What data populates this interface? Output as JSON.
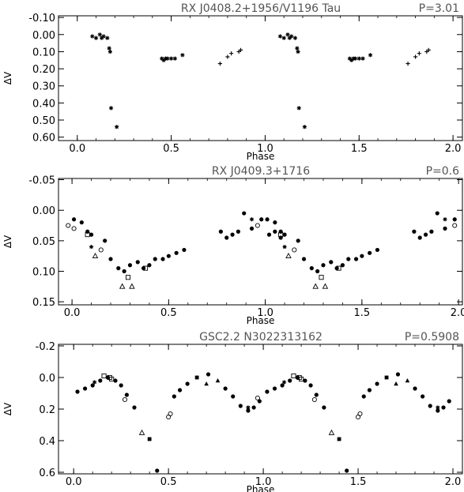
{
  "chart_data": [
    {
      "type": "scatter",
      "title": "RX J0408.2+1956/V1196 Tau",
      "period_label": "P=3.01",
      "xlabel": "Phase",
      "ylabel": "ΔV",
      "xlim": [
        -0.1,
        2.05
      ],
      "ylim": [
        0.62,
        -0.11
      ],
      "xticks": [
        0.0,
        0.5,
        1.0,
        1.5,
        2.0
      ],
      "xtick_labels": [
        "0.0",
        "0.5",
        "1.0",
        "1.5",
        "2.0"
      ],
      "yticks": [
        -0.1,
        0.0,
        0.1,
        0.2,
        0.3,
        0.4,
        0.5,
        0.6
      ],
      "ytick_labels": [
        "-0.10",
        "0.00",
        "0.10",
        "0.20",
        "0.30",
        "0.40",
        "0.50",
        "0.60"
      ],
      "series": [
        {
          "marker": "asterisk",
          "points": [
            [
              0.08,
              0.01
            ],
            [
              0.1,
              0.02
            ],
            [
              0.12,
              0.0
            ],
            [
              0.13,
              0.02
            ],
            [
              0.14,
              0.01
            ],
            [
              0.16,
              0.02
            ],
            [
              0.17,
              0.08
            ],
            [
              0.175,
              0.1
            ],
            [
              0.18,
              0.43
            ],
            [
              0.21,
              0.54
            ],
            [
              0.45,
              0.14
            ],
            [
              0.46,
              0.15
            ],
            [
              0.47,
              0.14
            ],
            [
              0.48,
              0.14
            ],
            [
              0.5,
              0.14
            ],
            [
              0.52,
              0.14
            ],
            [
              0.56,
              0.12
            ],
            [
              1.08,
              0.01
            ],
            [
              1.1,
              0.02
            ],
            [
              1.12,
              0.0
            ],
            [
              1.13,
              0.02
            ],
            [
              1.14,
              0.01
            ],
            [
              1.16,
              0.02
            ],
            [
              1.17,
              0.08
            ],
            [
              1.175,
              0.1
            ],
            [
              1.18,
              0.43
            ],
            [
              1.21,
              0.54
            ],
            [
              1.45,
              0.14
            ],
            [
              1.46,
              0.15
            ],
            [
              1.47,
              0.14
            ],
            [
              1.48,
              0.14
            ],
            [
              1.5,
              0.14
            ],
            [
              1.52,
              0.14
            ],
            [
              1.56,
              0.12
            ]
          ]
        },
        {
          "marker": "plus",
          "points": [
            [
              0.76,
              0.17
            ],
            [
              0.8,
              0.13
            ],
            [
              0.82,
              0.11
            ],
            [
              0.86,
              0.1
            ],
            [
              0.87,
              0.09
            ],
            [
              1.76,
              0.17
            ],
            [
              1.8,
              0.13
            ],
            [
              1.82,
              0.11
            ],
            [
              1.86,
              0.1
            ],
            [
              1.87,
              0.09
            ]
          ]
        }
      ]
    },
    {
      "type": "scatter",
      "title": "RX J0409.3+1716",
      "period_label": "P=0.6",
      "xlabel": "Phase",
      "ylabel": "ΔV",
      "xlim": [
        -0.07,
        2.02
      ],
      "ylim": [
        0.155,
        -0.052
      ],
      "xticks": [
        0.0,
        0.5,
        1.0,
        1.5,
        2.0
      ],
      "xtick_labels": [
        "0.0",
        "0.5",
        "1.0",
        "1.5",
        "2.0"
      ],
      "yticks": [
        -0.05,
        0.0,
        0.05,
        0.1,
        0.15
      ],
      "ytick_labels": [
        "-0.05",
        "0.00",
        "0.05",
        "0.10",
        "0.15"
      ],
      "series": [
        {
          "marker": "filled-circle",
          "points": [
            [
              0.01,
              0.015
            ],
            [
              0.05,
              0.02
            ],
            [
              0.08,
              0.035
            ],
            [
              0.1,
              0.04
            ],
            [
              0.17,
              0.05
            ],
            [
              0.2,
              0.08
            ],
            [
              0.24,
              0.095
            ],
            [
              0.27,
              0.1
            ],
            [
              0.3,
              0.09
            ],
            [
              0.34,
              0.085
            ],
            [
              0.37,
              0.095
            ],
            [
              0.4,
              0.09
            ],
            [
              0.43,
              0.08
            ],
            [
              0.47,
              0.08
            ],
            [
              0.5,
              0.075
            ],
            [
              0.54,
              0.07
            ],
            [
              0.58,
              0.065
            ],
            [
              0.77,
              0.035
            ],
            [
              0.8,
              0.045
            ],
            [
              0.83,
              0.04
            ],
            [
              0.86,
              0.035
            ],
            [
              0.89,
              0.005
            ],
            [
              0.93,
              0.03
            ],
            [
              0.98,
              0.015
            ],
            [
              1.02,
              0.04
            ],
            [
              1.05,
              0.035
            ],
            [
              1.08,
              0.045
            ],
            [
              1.01,
              0.015
            ],
            [
              1.05,
              0.02
            ],
            [
              1.08,
              0.035
            ],
            [
              1.1,
              0.04
            ],
            [
              1.17,
              0.05
            ],
            [
              1.2,
              0.08
            ],
            [
              1.24,
              0.095
            ],
            [
              1.27,
              0.1
            ],
            [
              1.3,
              0.09
            ],
            [
              1.34,
              0.085
            ],
            [
              1.37,
              0.095
            ],
            [
              1.4,
              0.09
            ],
            [
              1.43,
              0.08
            ],
            [
              1.47,
              0.08
            ],
            [
              1.5,
              0.075
            ],
            [
              1.54,
              0.07
            ],
            [
              1.58,
              0.065
            ],
            [
              1.77,
              0.035
            ],
            [
              1.8,
              0.045
            ],
            [
              1.83,
              0.04
            ],
            [
              1.86,
              0.035
            ],
            [
              1.89,
              0.005
            ],
            [
              1.93,
              0.03
            ],
            [
              1.98,
              0.015
            ]
          ]
        },
        {
          "marker": "open-square",
          "points": [
            [
              0.08,
              0.04
            ],
            [
              0.29,
              0.11
            ],
            [
              0.38,
              0.095
            ],
            [
              1.08,
              0.04
            ],
            [
              1.29,
              0.11
            ],
            [
              1.38,
              0.095
            ]
          ]
        },
        {
          "marker": "open-triangle",
          "points": [
            [
              0.12,
              0.075
            ],
            [
              0.26,
              0.125
            ],
            [
              0.31,
              0.125
            ],
            [
              1.12,
              0.075
            ],
            [
              1.26,
              0.125
            ],
            [
              1.31,
              0.125
            ]
          ]
        },
        {
          "marker": "open-circle",
          "points": [
            [
              -0.02,
              0.025
            ],
            [
              0.01,
              0.03
            ],
            [
              0.15,
              0.065
            ],
            [
              0.96,
              0.025
            ],
            [
              1.15,
              0.065
            ],
            [
              1.98,
              0.025
            ]
          ]
        },
        {
          "marker": "asterisk",
          "points": [
            [
              0.1,
              0.06
            ],
            [
              0.93,
              0.015
            ],
            [
              1.1,
              0.06
            ],
            [
              1.93,
              0.015
            ]
          ]
        }
      ]
    },
    {
      "type": "scatter",
      "title": "GSC2.2 N3022313162",
      "period_label": "P=0.5908",
      "xlabel": "Phase",
      "ylabel": "ΔV",
      "xlim": [
        -0.08,
        2.05
      ],
      "ylim": [
        0.61,
        -0.21
      ],
      "xticks": [
        0.0,
        0.5,
        1.0,
        1.5,
        2.0
      ],
      "xtick_labels": [
        "0.0",
        "0.5",
        "1.0",
        "1.5",
        "2.0"
      ],
      "yticks": [
        -0.2,
        0.0,
        0.2,
        0.4,
        0.6
      ],
      "ytick_labels": [
        "-0.2",
        "0.0",
        "0.2",
        "0.4",
        "0.6"
      ],
      "series": [
        {
          "marker": "filled-circle",
          "points": [
            [
              0.02,
              0.09
            ],
            [
              0.06,
              0.07
            ],
            [
              0.1,
              0.05
            ],
            [
              0.14,
              0.02
            ],
            [
              0.18,
              0.0
            ],
            [
              0.22,
              0.02
            ],
            [
              0.25,
              0.05
            ],
            [
              0.28,
              0.11
            ],
            [
              0.32,
              0.19
            ],
            [
              0.44,
              0.59
            ],
            [
              0.53,
              0.12
            ],
            [
              0.56,
              0.08
            ],
            [
              0.6,
              0.04
            ],
            [
              0.71,
              -0.02
            ],
            [
              0.8,
              0.07
            ],
            [
              0.84,
              0.12
            ],
            [
              0.88,
              0.18
            ],
            [
              0.92,
              0.21
            ],
            [
              0.95,
              0.19
            ],
            [
              0.98,
              0.15
            ],
            [
              1.02,
              0.09
            ],
            [
              1.06,
              0.07
            ],
            [
              1.1,
              0.05
            ],
            [
              1.14,
              0.02
            ],
            [
              1.18,
              0.0
            ],
            [
              1.22,
              0.02
            ],
            [
              1.25,
              0.05
            ],
            [
              1.28,
              0.11
            ],
            [
              1.32,
              0.19
            ],
            [
              1.44,
              0.59
            ],
            [
              1.53,
              0.12
            ],
            [
              1.56,
              0.08
            ],
            [
              1.6,
              0.04
            ],
            [
              1.71,
              -0.02
            ],
            [
              1.8,
              0.07
            ],
            [
              1.84,
              0.12
            ],
            [
              1.88,
              0.18
            ],
            [
              1.92,
              0.21
            ],
            [
              1.95,
              0.19
            ],
            [
              1.98,
              0.15
            ]
          ]
        },
        {
          "marker": "filled-square",
          "points": [
            [
              0.4,
              0.39
            ],
            [
              0.65,
              0.0
            ],
            [
              1.4,
              0.39
            ],
            [
              1.65,
              0.0
            ]
          ]
        },
        {
          "marker": "filled-triangle",
          "points": [
            [
              0.7,
              0.04
            ],
            [
              0.76,
              0.02
            ],
            [
              1.7,
              0.04
            ],
            [
              1.76,
              0.02
            ]
          ]
        },
        {
          "marker": "open-circle",
          "points": [
            [
              0.27,
              0.14
            ],
            [
              0.5,
              0.25
            ],
            [
              0.51,
              0.23
            ],
            [
              0.97,
              0.13
            ],
            [
              1.27,
              0.14
            ],
            [
              1.5,
              0.25
            ],
            [
              1.51,
              0.23
            ]
          ]
        },
        {
          "marker": "open-square",
          "points": [
            [
              0.16,
              -0.01
            ],
            [
              0.19,
              0.0
            ],
            [
              0.2,
              0.01
            ],
            [
              1.16,
              -0.01
            ],
            [
              1.19,
              0.0
            ],
            [
              1.2,
              0.01
            ]
          ]
        },
        {
          "marker": "open-triangle",
          "points": [
            [
              0.36,
              0.35
            ],
            [
              1.36,
              0.35
            ]
          ]
        },
        {
          "marker": "asterisk",
          "points": [
            [
              0.11,
              0.03
            ],
            [
              0.92,
              0.19
            ],
            [
              1.11,
              0.03
            ],
            [
              1.92,
              0.19
            ]
          ]
        }
      ]
    }
  ]
}
